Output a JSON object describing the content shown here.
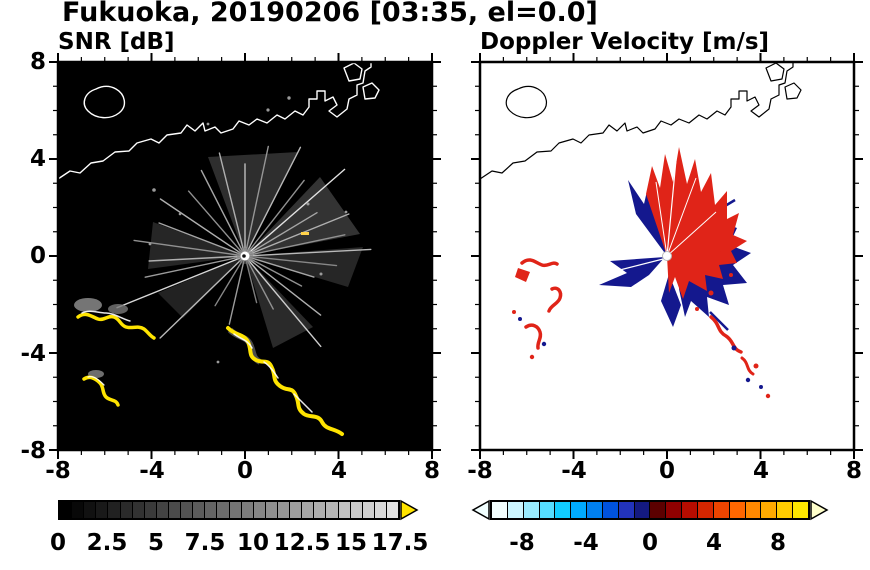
{
  "title": "Fukuoka, 20190206 [03:35, el=0.0]",
  "panels": [
    {
      "title": "SNR [dB]",
      "xticks": [
        "-8",
        "-4",
        "0",
        "4",
        "8"
      ],
      "yticks": [
        "8",
        "4",
        "0",
        "-4",
        "-8"
      ],
      "colorbar": {
        "tick_labels": [
          "0",
          "2.5",
          "5",
          "7.5",
          "10",
          "12.5",
          "15",
          "17.5"
        ],
        "overflow_color": "#ffe400",
        "segments": [
          "#000000",
          "#080808",
          "#111111",
          "#191919",
          "#212121",
          "#2a2a2a",
          "#323232",
          "#3a3a3a",
          "#434343",
          "#4b4b4b",
          "#535353",
          "#5c5c5c",
          "#646464",
          "#6c6c6c",
          "#757575",
          "#7d7d7d",
          "#858585",
          "#8e8e8e",
          "#969696",
          "#9e9e9e",
          "#a7a7a7",
          "#afafaf",
          "#b7b7b7",
          "#c0c0c0",
          "#c8c8c8",
          "#d0d0d0",
          "#d9d9d9",
          "#e1e1e1"
        ]
      }
    },
    {
      "title": "Doppler Velocity [m/s]",
      "xticks": [
        "-8",
        "-4",
        "0",
        "4",
        "8"
      ],
      "colorbar": {
        "tick_labels": [
          "-8",
          "-4",
          "0",
          "4",
          "8"
        ],
        "underflow_color": "#f2ffff",
        "overflow_color": "#ffffcc",
        "segments": [
          "#f2ffff",
          "#ccf6ff",
          "#99ecff",
          "#55ddff",
          "#11ccff",
          "#00aaff",
          "#0080f0",
          "#0052dd",
          "#2233bb",
          "#141a80",
          "#5c0000",
          "#900000",
          "#b80c00",
          "#d62600",
          "#ee4400",
          "#ff6600",
          "#ff8800",
          "#ffaa00",
          "#ffcc00",
          "#ffe800"
        ]
      }
    }
  ],
  "chart_data": [
    {
      "type": "heatmap",
      "title": "SNR [dB]",
      "xlim": [
        -8,
        8
      ],
      "ylim": [
        -8,
        8
      ],
      "xticks": [
        -8,
        -4,
        0,
        4,
        8
      ],
      "yticks": [
        -8,
        -4,
        0,
        4,
        8
      ],
      "grid": false,
      "background_color": "#000000",
      "colorbar": {
        "orientation": "horizontal",
        "min": 0,
        "max": 17.5,
        "tick_values": [
          0,
          2.5,
          5,
          7.5,
          10,
          12.5,
          15,
          17.5
        ],
        "colormap": "grayscale, black (0 dB) to near-white (17.5 dB), yellow overflow arrow"
      },
      "features": [
        {
          "name": "radar origin",
          "x": 0,
          "y": 0,
          "appearance": "bright point at panel center"
        },
        {
          "name": "radial beam streaks",
          "appearance": "faint gray rays fanning from origin in all azimuths, length ~2-6 units, SNR ~2-10 dB"
        },
        {
          "name": "coastline overlay",
          "color": "white",
          "location": "upper part of panel y ~ 3.5 to 8, harbor/jetty structures near x ~ 1 to 4, small island near x ~ -6.5, y ~ 6.3"
        },
        {
          "name": "strong clutter arc",
          "value_dB": ">=17.5 (yellow)",
          "location": "x ~ -7 to -4, y ~ -2.5 to -3.5"
        },
        {
          "name": "strong clutter arc",
          "value_dB": ">=17.5 (yellow)",
          "location": "x ~ -7 to -5.5, y ~ -5 to -6.2"
        },
        {
          "name": "strong clutter ridge",
          "value_dB": ">=17.5 (yellow)",
          "location": "wavy line from x ~ -0.7, y ~ -3 down to x ~ 4.2, y ~ -7.3"
        }
      ]
    },
    {
      "type": "heatmap",
      "title": "Doppler Velocity [m/s]",
      "xlim": [
        -8,
        8
      ],
      "ylim": [
        -8,
        8
      ],
      "xticks": [
        -8,
        -4,
        0,
        4,
        8
      ],
      "yticks": [
        -8,
        -4,
        0,
        4,
        8
      ],
      "grid": false,
      "background_color": "#ffffff",
      "colorbar": {
        "orientation": "horizontal",
        "min": -10,
        "max": 10,
        "tick_values": [
          -8,
          -4,
          0,
          4,
          8
        ],
        "colormap": "pale cyan to blue to dark navy for negative velocities, dark red to red to orange to yellow for positive; overflow arrows both ends"
      },
      "features": [
        {
          "name": "positive-velocity echo fan",
          "color": "red (~+2 to +6 m/s)",
          "location": "from origin toward N-NE, x ~ 0 to 3, y ~ 0 to 4.5"
        },
        {
          "name": "negative-velocity echoes",
          "color": "dark blue (~-2 to -6 m/s)",
          "location": "E and SE of origin x ~ 1 to 3.5, y ~ -2.5 to 1.5, plus wedge W of origin x ~ -3 to 0"
        },
        {
          "name": "mixed clutter specks",
          "color": "red with blue specks",
          "location": "SW area x ~ -6.5 to -4, y ~ -4 to 0"
        },
        {
          "name": "echo tail",
          "color": "alternating red/blue",
          "location": "from x ~ 2, y ~ -2.5 down to x ~ 4, y ~ -5.5"
        },
        {
          "name": "coastline overlay",
          "color": "black",
          "location": "upper part of panel, same shape as SNR panel"
        }
      ]
    }
  ]
}
